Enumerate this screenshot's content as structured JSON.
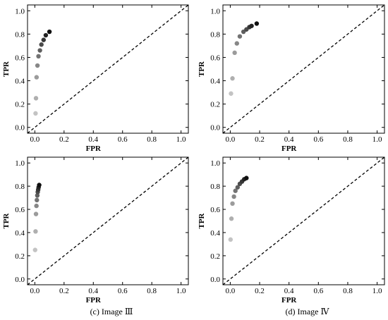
{
  "chart_data": [
    {
      "type": "scatter",
      "panel": "a",
      "caption": "",
      "xlabel": "FPR",
      "ylabel": "TPR",
      "xlim": [
        -0.05,
        1.05
      ],
      "ylim": [
        -0.05,
        1.05
      ],
      "xticks": [
        "0.0",
        "0.2",
        "0.4",
        "0.6",
        "0.8",
        "1.0"
      ],
      "yticks": [
        "0.0",
        "0.2",
        "0.4",
        "0.6",
        "0.8",
        "1.0"
      ],
      "diagonal": "dashed",
      "points": [
        {
          "x": 0.005,
          "y": 0.12
        },
        {
          "x": 0.008,
          "y": 0.25
        },
        {
          "x": 0.012,
          "y": 0.43
        },
        {
          "x": 0.018,
          "y": 0.53
        },
        {
          "x": 0.025,
          "y": 0.61
        },
        {
          "x": 0.035,
          "y": 0.66
        },
        {
          "x": 0.045,
          "y": 0.71
        },
        {
          "x": 0.06,
          "y": 0.75
        },
        {
          "x": 0.075,
          "y": 0.79
        },
        {
          "x": 0.1,
          "y": 0.82
        }
      ]
    },
    {
      "type": "scatter",
      "panel": "b",
      "caption": "",
      "xlabel": "FPR",
      "ylabel": "TPR",
      "xlim": [
        -0.05,
        1.05
      ],
      "ylim": [
        -0.05,
        1.05
      ],
      "xticks": [
        "0.0",
        "0.2",
        "0.4",
        "0.6",
        "0.8",
        "1.0"
      ],
      "yticks": [
        "0.0",
        "0.2",
        "0.4",
        "0.6",
        "0.8",
        "1.0"
      ],
      "diagonal": "dashed",
      "points": [
        {
          "x": 0.005,
          "y": 0.29
        },
        {
          "x": 0.015,
          "y": 0.42
        },
        {
          "x": 0.03,
          "y": 0.64
        },
        {
          "x": 0.045,
          "y": 0.72
        },
        {
          "x": 0.065,
          "y": 0.78
        },
        {
          "x": 0.09,
          "y": 0.82
        },
        {
          "x": 0.11,
          "y": 0.84
        },
        {
          "x": 0.13,
          "y": 0.86
        },
        {
          "x": 0.145,
          "y": 0.87
        },
        {
          "x": 0.18,
          "y": 0.89
        }
      ]
    },
    {
      "type": "scatter",
      "panel": "c",
      "caption": "(c) Image Ⅲ",
      "xlabel": "FPR",
      "ylabel": "TPR",
      "xlim": [
        -0.05,
        1.05
      ],
      "ylim": [
        -0.05,
        1.05
      ],
      "xticks": [
        "0.0",
        "0.2",
        "0.4",
        "0.6",
        "0.8",
        "1.0"
      ],
      "yticks": [
        "0.0",
        "0.2",
        "0.4",
        "0.6",
        "0.8",
        "1.0"
      ],
      "diagonal": "dashed",
      "points": [
        {
          "x": 0.002,
          "y": 0.25
        },
        {
          "x": 0.005,
          "y": 0.41
        },
        {
          "x": 0.008,
          "y": 0.56
        },
        {
          "x": 0.011,
          "y": 0.63
        },
        {
          "x": 0.014,
          "y": 0.68
        },
        {
          "x": 0.017,
          "y": 0.72
        },
        {
          "x": 0.02,
          "y": 0.75
        },
        {
          "x": 0.023,
          "y": 0.77
        },
        {
          "x": 0.026,
          "y": 0.79
        },
        {
          "x": 0.03,
          "y": 0.81
        }
      ]
    },
    {
      "type": "scatter",
      "panel": "d",
      "caption": "(d) Image Ⅳ",
      "xlabel": "FPR",
      "ylabel": "TPR",
      "xlim": [
        -0.05,
        1.05
      ],
      "ylim": [
        -0.05,
        1.05
      ],
      "xticks": [
        "0.0",
        "0.2",
        "0.4",
        "0.6",
        "0.8",
        "1.0"
      ],
      "yticks": [
        "0.0",
        "0.2",
        "0.4",
        "0.6",
        "0.8",
        "1.0"
      ],
      "diagonal": "dashed",
      "points": [
        {
          "x": 0.002,
          "y": 0.34
        },
        {
          "x": 0.008,
          "y": 0.52
        },
        {
          "x": 0.015,
          "y": 0.65
        },
        {
          "x": 0.025,
          "y": 0.71
        },
        {
          "x": 0.035,
          "y": 0.76
        },
        {
          "x": 0.05,
          "y": 0.79
        },
        {
          "x": 0.065,
          "y": 0.82
        },
        {
          "x": 0.08,
          "y": 0.84
        },
        {
          "x": 0.095,
          "y": 0.86
        },
        {
          "x": 0.11,
          "y": 0.87
        }
      ]
    }
  ]
}
